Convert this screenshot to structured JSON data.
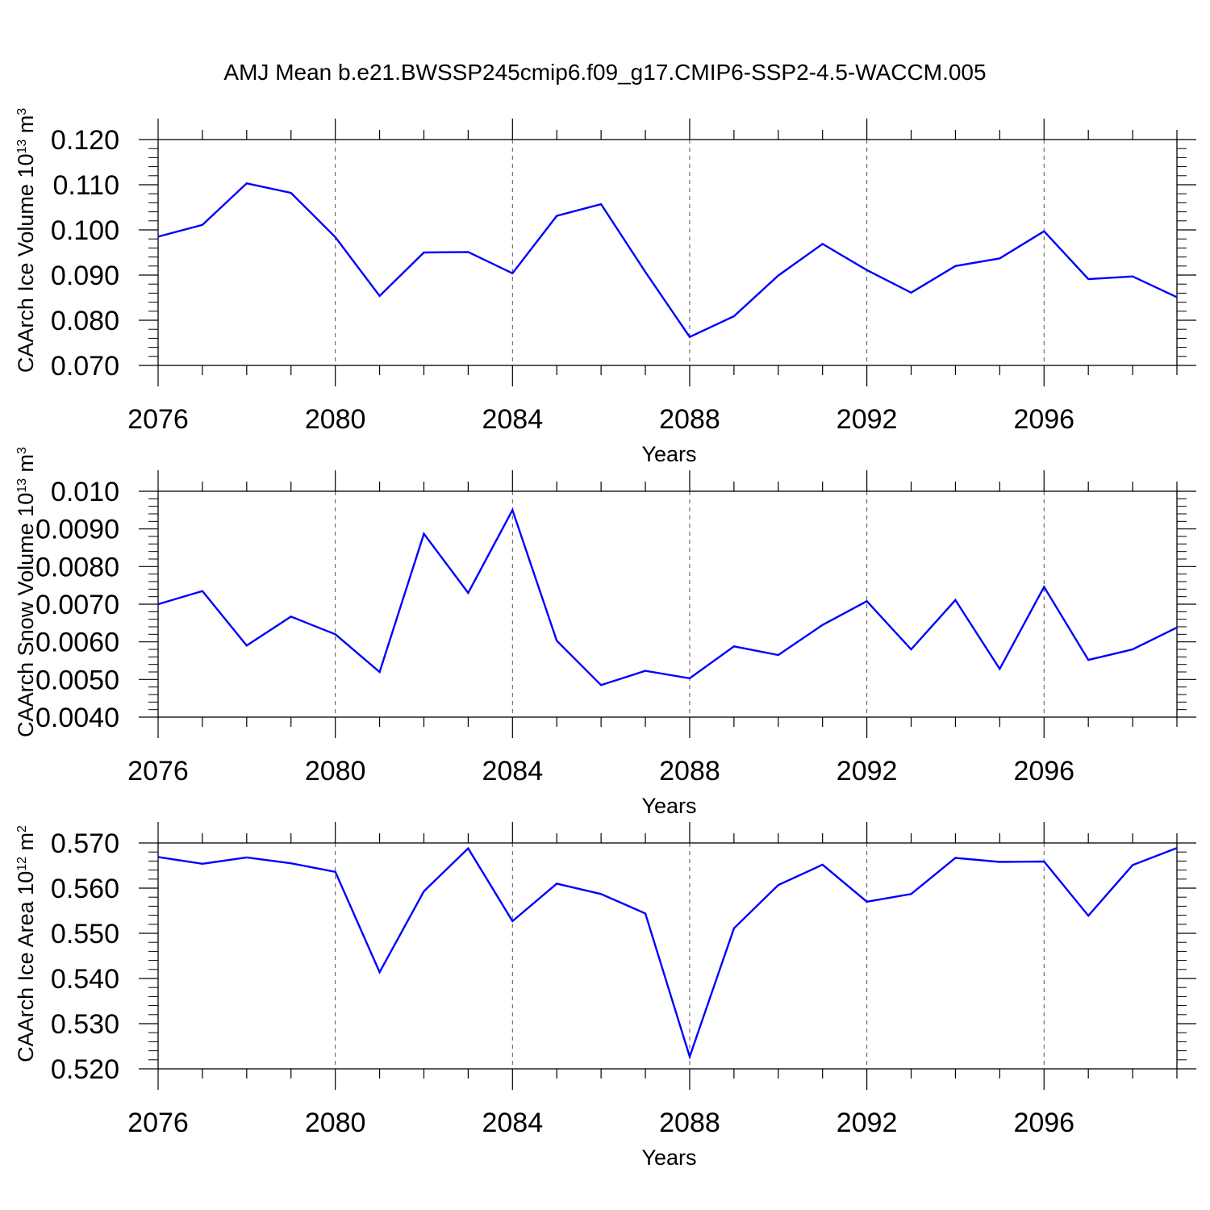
{
  "title": "AMJ Mean b.e21.BWSSP245cmip6.f09_g17.CMIP6-SSP2-4.5-WACCM.005",
  "colors": {
    "line": "#0000ff",
    "axes": "#000000",
    "grid": "#555555"
  },
  "chart_data": [
    {
      "type": "line",
      "name": "ice-volume",
      "xlabel": "Years",
      "ylabel": {
        "text": "CAArch Ice Volume 10",
        "sup1": "13",
        "unit": " m",
        "sup2": "3"
      },
      "x": [
        2076,
        2077,
        2078,
        2079,
        2080,
        2081,
        2082,
        2083,
        2084,
        2085,
        2086,
        2087,
        2088,
        2089,
        2090,
        2091,
        2092,
        2093,
        2094,
        2095,
        2096,
        2097,
        2098,
        2099
      ],
      "y": [
        0.0985,
        0.1011,
        0.1103,
        0.1082,
        0.0984,
        0.0854,
        0.095,
        0.0951,
        0.0904,
        0.1031,
        0.1057,
        0.0907,
        0.0763,
        0.0809,
        0.0899,
        0.0969,
        0.0911,
        0.0861,
        0.092,
        0.0937,
        0.0997,
        0.0891,
        0.0897,
        0.0851
      ],
      "xlim": [
        2076,
        2099
      ],
      "ylim": [
        0.07,
        0.12
      ],
      "xticks": [
        2076,
        2080,
        2084,
        2088,
        2092,
        2096
      ],
      "xtick_labels": [
        "2076",
        "2080",
        "2084",
        "2088",
        "2092",
        "2096"
      ],
      "yticks": [
        0.07,
        0.08,
        0.09,
        0.1,
        0.11,
        0.12
      ],
      "ytick_labels": [
        "0.070",
        "0.080",
        "0.090",
        "0.100",
        "0.110",
        "0.120"
      ],
      "grid": "vertical dashed at major x ticks"
    },
    {
      "type": "line",
      "name": "snow-volume",
      "xlabel": "Years",
      "ylabel": {
        "text": "CAArch Snow Volume 10",
        "sup1": "13",
        "unit": " m",
        "sup2": "3"
      },
      "x": [
        2076,
        2077,
        2078,
        2079,
        2080,
        2081,
        2082,
        2083,
        2084,
        2085,
        2086,
        2087,
        2088,
        2089,
        2090,
        2091,
        2092,
        2093,
        2094,
        2095,
        2096,
        2097,
        2098,
        2099
      ],
      "y": [
        0.007,
        0.00735,
        0.0059,
        0.00667,
        0.0062,
        0.0052,
        0.00887,
        0.0073,
        0.0095,
        0.00603,
        0.00485,
        0.00523,
        0.00503,
        0.00588,
        0.00565,
        0.00645,
        0.00708,
        0.0058,
        0.00711,
        0.00528,
        0.00746,
        0.00552,
        0.0058,
        0.00638
      ],
      "xlim": [
        2076,
        2099
      ],
      "ylim": [
        0.004,
        0.01
      ],
      "xticks": [
        2076,
        2080,
        2084,
        2088,
        2092,
        2096
      ],
      "xtick_labels": [
        "2076",
        "2080",
        "2084",
        "2088",
        "2092",
        "2096"
      ],
      "yticks": [
        0.004,
        0.005,
        0.006,
        0.007,
        0.008,
        0.009,
        0.01
      ],
      "ytick_labels": [
        "0.0040",
        "0.0050",
        "0.0060",
        "0.0070",
        "0.0080",
        "0.0090",
        "0.010"
      ],
      "grid": "vertical dashed at major x ticks"
    },
    {
      "type": "line",
      "name": "ice-area",
      "xlabel": "Years",
      "ylabel": {
        "text": "CAArch Ice Area 10",
        "sup1": "12",
        "unit": " m",
        "sup2": "2"
      },
      "x": [
        2076,
        2077,
        2078,
        2079,
        2080,
        2081,
        2082,
        2083,
        2084,
        2085,
        2086,
        2087,
        2088,
        2089,
        2090,
        2091,
        2092,
        2093,
        2094,
        2095,
        2096,
        2097,
        2098,
        2099
      ],
      "y": [
        0.5669,
        0.5654,
        0.5668,
        0.5655,
        0.5636,
        0.5414,
        0.5593,
        0.5688,
        0.5527,
        0.561,
        0.5587,
        0.5544,
        0.5227,
        0.5511,
        0.5607,
        0.5652,
        0.557,
        0.5587,
        0.5667,
        0.5658,
        0.5659,
        0.5539,
        0.5651,
        0.5689
      ],
      "xlim": [
        2076,
        2099
      ],
      "ylim": [
        0.52,
        0.57
      ],
      "xticks": [
        2076,
        2080,
        2084,
        2088,
        2092,
        2096
      ],
      "xtick_labels": [
        "2076",
        "2080",
        "2084",
        "2088",
        "2092",
        "2096"
      ],
      "yticks": [
        0.52,
        0.53,
        0.54,
        0.55,
        0.56,
        0.57
      ],
      "ytick_labels": [
        "0.520",
        "0.530",
        "0.540",
        "0.550",
        "0.560",
        "0.570"
      ],
      "grid": "vertical dashed at major x ticks"
    }
  ]
}
